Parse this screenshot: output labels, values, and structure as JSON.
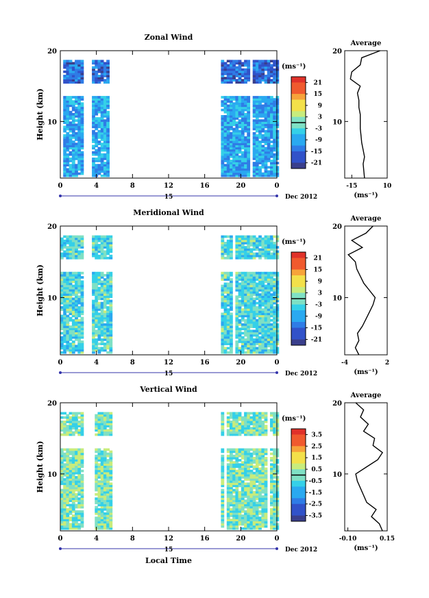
{
  "page": {
    "date_label": "Dec 2012",
    "day_label": "15",
    "xlabel": "Local Time"
  },
  "colors": {
    "scale": [
      "#3a3f8c",
      "#3152c9",
      "#2f7ce6",
      "#2aa9f0",
      "#35d0e8",
      "#7fe0c4",
      "#c8ec7c",
      "#f3e04a",
      "#f7a33a",
      "#f05a2e",
      "#e0322a"
    ],
    "white": "#ffffff",
    "axis": "#000000"
  },
  "chart_data": [
    {
      "type": "heatmap",
      "title": "Zonal Wind",
      "ylabel": "Height (km)",
      "unit_label": "(ms⁻¹)",
      "x_ticks": [
        "0",
        "4",
        "8",
        "12",
        "16",
        "20",
        "0"
      ],
      "y_ticks": [
        "10",
        "20"
      ],
      "ylim": [
        2,
        20
      ],
      "xlim": [
        0,
        24
      ],
      "colorbar": {
        "ticks": [
          "21",
          "15",
          "9",
          "3",
          "-3",
          "-9",
          "-15",
          "-21"
        ],
        "range": [
          -24,
          24
        ]
      },
      "data_description_values": {
        "time_blocks_hours": [
          [
            0,
            2.5
          ],
          [
            3.5,
            5.5
          ],
          [
            17.8,
            24
          ]
        ],
        "typical_value": -9
      },
      "average_profile": {
        "title": "Average",
        "xlabel": "(ms⁻¹)",
        "x_ticks": [
          "-15",
          "10"
        ],
        "y_ticks": [
          "10",
          "20"
        ],
        "xlim": [
          -20,
          10
        ],
        "height": [
          2,
          3,
          4,
          5,
          6,
          7,
          8,
          9,
          10,
          11,
          12,
          13,
          14,
          15,
          16,
          17,
          18,
          19,
          20
        ],
        "value": [
          -6,
          -6.5,
          -7,
          -6,
          -7,
          -8,
          -8.5,
          -9,
          -9,
          -9,
          -10,
          -10,
          -11,
          -9,
          -16,
          -15,
          -9,
          -8,
          5
        ]
      }
    },
    {
      "type": "heatmap",
      "title": "Meridional Wind",
      "ylabel": "Height (km)",
      "unit_label": "(ms⁻¹)",
      "x_ticks": [
        "0",
        "4",
        "8",
        "12",
        "16",
        "20",
        "0"
      ],
      "y_ticks": [
        "10",
        "20"
      ],
      "ylim": [
        2,
        20
      ],
      "xlim": [
        0,
        24
      ],
      "colorbar": {
        "ticks": [
          "21",
          "15",
          "9",
          "3",
          "-3",
          "-9",
          "-15",
          "-21"
        ],
        "range": [
          -24,
          24
        ]
      },
      "data_description_values": {
        "time_blocks_hours": [
          [
            0,
            2.5
          ],
          [
            3.5,
            5.5
          ],
          [
            17.8,
            24
          ]
        ],
        "typical_value": -3
      },
      "average_profile": {
        "title": "Average",
        "xlabel": "(ms⁻¹)",
        "x_ticks": [
          "-4",
          "2"
        ],
        "y_ticks": [
          "10",
          "20"
        ],
        "xlim": [
          -4,
          2
        ],
        "height": [
          2,
          3,
          4,
          5,
          6,
          7,
          8,
          9,
          10,
          11,
          12,
          13,
          14,
          15,
          16,
          17,
          18,
          19,
          20
        ],
        "value": [
          -2,
          -2.5,
          -2,
          -2.2,
          -1.5,
          -1,
          -0.5,
          0,
          0.3,
          -0.5,
          -1.3,
          -1.8,
          -2.3,
          -2.5,
          -3.5,
          -1.5,
          -3,
          -1,
          0
        ]
      }
    },
    {
      "type": "heatmap",
      "title": "Vertical Wind",
      "ylabel": "Height (km)",
      "unit_label": "(ms⁻¹)",
      "x_ticks": [
        "0",
        "4",
        "8",
        "12",
        "16",
        "20",
        "0"
      ],
      "y_ticks": [
        "10",
        "20"
      ],
      "ylim": [
        2,
        20
      ],
      "xlim": [
        0,
        24
      ],
      "colorbar": {
        "ticks": [
          "3.5",
          "2.5",
          "1.5",
          "0.5",
          "-0.5",
          "-1.5",
          "-2.5",
          "-3.5"
        ],
        "range": [
          -4,
          4
        ]
      },
      "data_description_values": {
        "time_blocks_hours": [
          [
            0,
            2.5
          ],
          [
            3.5,
            5.5
          ],
          [
            17.8,
            24
          ]
        ],
        "typical_value": 0
      },
      "average_profile": {
        "title": "Average",
        "xlabel": "(ms⁻¹)",
        "x_ticks": [
          "-0.10",
          "0.15"
        ],
        "y_ticks": [
          "10",
          "20"
        ],
        "xlim": [
          -0.12,
          0.15
        ],
        "height": [
          2,
          3,
          4,
          5,
          6,
          7,
          8,
          9,
          10,
          11,
          12,
          13,
          14,
          15,
          16,
          17,
          18,
          19,
          20
        ],
        "value": [
          0.12,
          0.1,
          0.05,
          0.08,
          0.02,
          0.0,
          -0.02,
          -0.04,
          -0.05,
          0.02,
          0.09,
          0.12,
          0.06,
          0.07,
          0.0,
          0.03,
          -0.02,
          0.0,
          -0.05
        ]
      }
    }
  ]
}
